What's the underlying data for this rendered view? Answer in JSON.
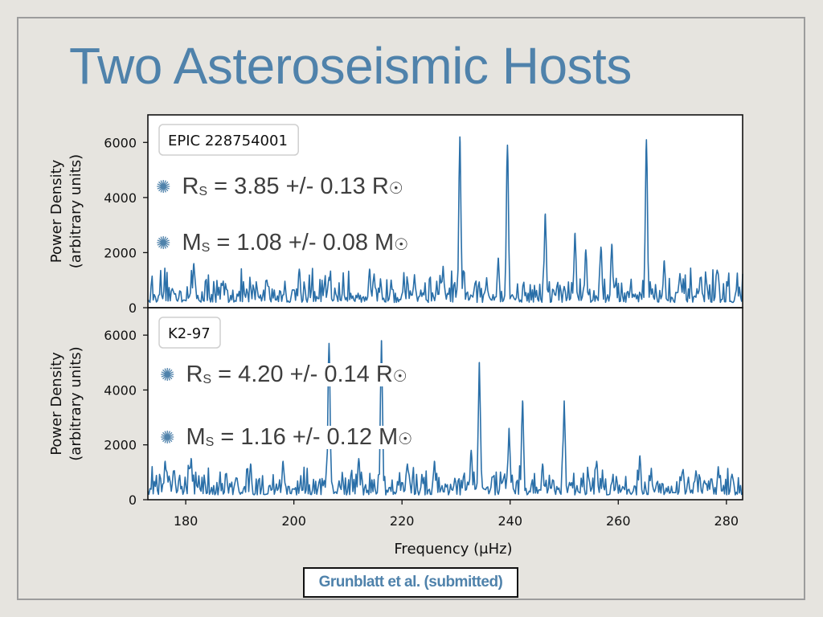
{
  "slide": {
    "title": "Two Asteroseismic Hosts",
    "citation": "Grunblatt et al. (submitted)"
  },
  "annotations": {
    "top": {
      "radius_value": "R",
      "radius_sub": "S",
      "radius_text": " = 3.85 +/- 0.13 R",
      "mass_value": "M",
      "mass_sub": "S",
      "mass_text": " = 1.08 +/- 0.08 M",
      "sun_symbol": "☉"
    },
    "bottom": {
      "radius_value": "R",
      "radius_sub": "S",
      "radius_text": " = 4.20 +/- 0.14 R",
      "mass_value": "M",
      "mass_sub": "S",
      "mass_text": " = 1.16 +/- 0.12 M",
      "sun_symbol": "☉"
    },
    "bullet_icon": "asterisk-bullet-icon"
  },
  "chart_data": [
    {
      "type": "line",
      "panel_label": "EPIC 228754001",
      "xlabel": "",
      "ylabel": "Power Density\n(arbitrary units)",
      "xlim": [
        173,
        283
      ],
      "ylim": [
        0,
        7000
      ],
      "yticks": [
        0,
        2000,
        4000,
        6000
      ],
      "line_color": "#2a6fa8",
      "peaks": [
        {
          "x": 230.7,
          "y": 6200
        },
        {
          "x": 239.5,
          "y": 5900
        },
        {
          "x": 246.5,
          "y": 3400
        },
        {
          "x": 265.2,
          "y": 6100
        },
        {
          "x": 237.8,
          "y": 1800
        },
        {
          "x": 252.0,
          "y": 2700
        },
        {
          "x": 222.3,
          "y": 1200
        },
        {
          "x": 227.6,
          "y": 1500
        },
        {
          "x": 254.0,
          "y": 2100
        },
        {
          "x": 256.8,
          "y": 2200
        },
        {
          "x": 258.8,
          "y": 2300
        },
        {
          "x": 268.5,
          "y": 1700
        },
        {
          "x": 181.5,
          "y": 1600
        },
        {
          "x": 195.0,
          "y": 1000
        },
        {
          "x": 201.0,
          "y": 1400
        },
        {
          "x": 206.5,
          "y": 1100
        },
        {
          "x": 214.0,
          "y": 1400
        },
        {
          "x": 218.0,
          "y": 1000
        }
      ],
      "noise_level": 550
    },
    {
      "type": "line",
      "panel_label": "K2-97",
      "xlabel": "Frequency (μHz)",
      "ylabel": "Power Density\n(arbitrary units)",
      "xlim": [
        173,
        283
      ],
      "ylim": [
        0,
        7000
      ],
      "xticks": [
        180,
        200,
        220,
        240,
        260,
        280
      ],
      "yticks": [
        0,
        2000,
        4000,
        6000
      ],
      "line_color": "#2a6fa8",
      "peaks": [
        {
          "x": 206.5,
          "y": 5700
        },
        {
          "x": 216.2,
          "y": 5800
        },
        {
          "x": 234.3,
          "y": 5000
        },
        {
          "x": 242.3,
          "y": 3600
        },
        {
          "x": 239.8,
          "y": 2600
        },
        {
          "x": 250.0,
          "y": 3600
        },
        {
          "x": 232.8,
          "y": 1800
        },
        {
          "x": 176.2,
          "y": 1400
        },
        {
          "x": 181.0,
          "y": 1500
        },
        {
          "x": 192.0,
          "y": 1300
        },
        {
          "x": 198.0,
          "y": 1400
        },
        {
          "x": 212.0,
          "y": 1500
        },
        {
          "x": 221.0,
          "y": 1300
        },
        {
          "x": 226.0,
          "y": 1400
        },
        {
          "x": 246.0,
          "y": 1300
        },
        {
          "x": 256.0,
          "y": 1400
        },
        {
          "x": 264.0,
          "y": 1600
        },
        {
          "x": 272.0,
          "y": 1100
        },
        {
          "x": 278.5,
          "y": 1200
        }
      ],
      "noise_level": 500
    }
  ]
}
